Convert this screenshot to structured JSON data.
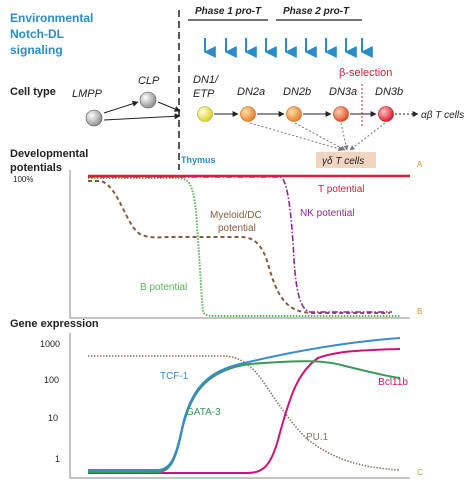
{
  "header": {
    "notch_line1": "Environmental",
    "notch_line2": "Notch-DL",
    "notch_line3": "signaling",
    "phase1": "Phase 1 pro-T",
    "phase2": "Phase 2 pro-T",
    "beta_selection": "β-selection",
    "cell_type_label": "Cell type"
  },
  "cells": {
    "lmpp": "LMPP",
    "clp": "CLP",
    "dn1_line1": "DN1/",
    "dn1_line2": "ETP",
    "dn2a": "DN2a",
    "dn2b": "DN2b",
    "dn3a": "DN3a",
    "dn3b": "DN3b",
    "ab_t": "αβ T cells",
    "gd_t": "γδ T cells",
    "thymus": "Thymus"
  },
  "potentials": {
    "title_line1": "Developmental",
    "title_line2": "potentials",
    "y100": "100%",
    "panel_a": "A",
    "panel_b": "B",
    "t_potential": "T potential",
    "nk_potential": "NK potential",
    "myeloid_line1": "Myeloid/DC",
    "myeloid_line2": "potential",
    "b_potential": "B potential"
  },
  "gene": {
    "title": "Gene expression",
    "ticks": [
      "1000",
      "100",
      "10",
      "1"
    ],
    "panel_c": "C",
    "tcf1": "TCF-1",
    "gata3": "GATA-3",
    "pu1": "PU.1",
    "bcl11b": "Bcl11b"
  },
  "colors": {
    "notch_blue": "#2a8cc8",
    "t_potential": "#d0203a",
    "nk_potential": "#8a2a9a",
    "myeloid": "#8a5a3a",
    "b_potential": "#5ab55a",
    "tcf1": "#3a8ad0",
    "gata3": "#3a9a5a",
    "pu1": "#8a7a6a",
    "bcl11b": "#d0107a",
    "panel_letter": "#e0902a"
  }
}
